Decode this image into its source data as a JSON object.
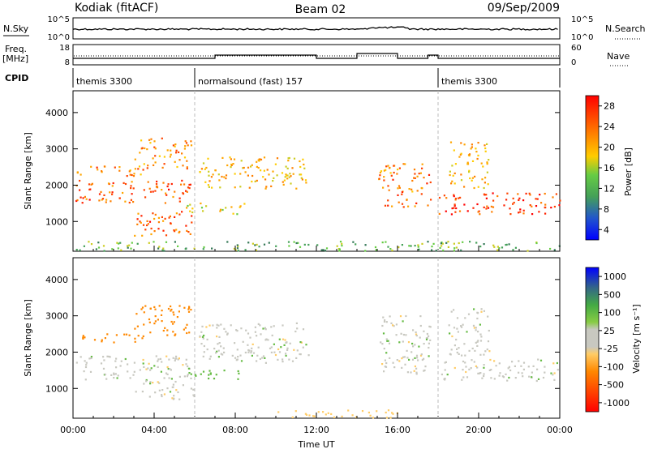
{
  "header": {
    "station": "Kodiak (fitACF)",
    "beam": "Beam 02",
    "date": "09/Sep/2009"
  },
  "strips": {
    "nsky_label": "N.Sky",
    "nsky_ticks": [
      "10^5",
      "10^0"
    ],
    "nsearch_label": "N.Search",
    "nsearch_ticks": [
      "10^5",
      "10^0"
    ],
    "freq_label": "Freq.",
    "freq_unit": "[MHz]",
    "freq_ticks": [
      "18",
      "8"
    ],
    "nave_label": "Nave",
    "nave_ticks": [
      "60",
      "0"
    ],
    "cpid_label": "CPID",
    "cpid_segments": [
      {
        "name": "themis 3300",
        "start_hour": 0,
        "end_hour": 6.0
      },
      {
        "name": "normalsound (fast) 157",
        "start_hour": 6.0,
        "end_hour": 18.0
      },
      {
        "name": "themis 3300",
        "start_hour": 18.0,
        "end_hour": 24
      }
    ]
  },
  "chart_data": [
    {
      "type": "heatmap",
      "title": "",
      "xlabel": "Time UT",
      "ylabel": "Slant Range [km]",
      "xlim": [
        0,
        24
      ],
      "ylim": [
        180,
        4600
      ],
      "x_ticks": [
        "00:00",
        "04:00",
        "08:00",
        "12:00",
        "16:00",
        "20:00",
        "00:00"
      ],
      "y_ticks": [
        1000,
        2000,
        3000,
        4000
      ],
      "colorbar": {
        "label": "Power [dB]",
        "ticks": [
          "28",
          "24",
          "20",
          "16",
          "12",
          "8",
          "4"
        ],
        "range": [
          0,
          30
        ],
        "colors": [
          "#0000ff",
          "#2255cc",
          "#337755",
          "#44a058",
          "#66cc44",
          "#cccc22",
          "#ffcc00",
          "#ffa500",
          "#ff7f00",
          "#ff4400",
          "#ff2200",
          "#ff0000"
        ]
      },
      "features": [
        {
          "t0": 0.1,
          "t1": 5.8,
          "r0": 1500,
          "r1": 2150,
          "level": 24
        },
        {
          "t0": 0.1,
          "t1": 3.5,
          "r0": 2250,
          "r1": 2550,
          "level": 22
        },
        {
          "t0": 3.0,
          "t1": 5.8,
          "r0": 2450,
          "r1": 3300,
          "level": 20
        },
        {
          "t0": 3.0,
          "t1": 6.0,
          "r0": 600,
          "r1": 1300,
          "level": 24
        },
        {
          "t0": 5.5,
          "t1": 8.5,
          "r0": 1200,
          "r1": 1500,
          "level": 16
        },
        {
          "t0": 6.2,
          "t1": 11.6,
          "r0": 1900,
          "r1": 2800,
          "level": 18
        },
        {
          "t0": 15.0,
          "t1": 17.6,
          "r0": 1400,
          "r1": 2600,
          "level": 22
        },
        {
          "t0": 18.0,
          "t1": 24,
          "r0": 1200,
          "r1": 1800,
          "level": 26
        },
        {
          "t0": 18.5,
          "t1": 20.5,
          "r0": 1900,
          "r1": 3200,
          "level": 18
        },
        {
          "t0": 0.1,
          "t1": 24,
          "r0": 190,
          "r1": 450,
          "level": 10
        }
      ]
    },
    {
      "type": "heatmap",
      "title": "",
      "xlabel": "Time UT",
      "ylabel": "Slant Range [km]",
      "xlim": [
        0,
        24
      ],
      "ylim": [
        180,
        4600
      ],
      "x_ticks": [
        "00:00",
        "04:00",
        "08:00",
        "12:00",
        "16:00",
        "20:00",
        "00:00"
      ],
      "y_ticks": [
        1000,
        2000,
        3000,
        4000
      ],
      "colorbar": {
        "label": "Velocity [m s⁻¹]",
        "ticks": [
          "1000",
          "500",
          "100",
          "25",
          "-25",
          "-100",
          "-500",
          "-1000"
        ],
        "colors": [
          "#ff0000",
          "#ff4400",
          "#ff8800",
          "#ffbb00",
          "#ffdd88",
          "#c8c8c0",
          "#c8c8c0",
          "#88cc44",
          "#44aa44",
          "#336688",
          "#2244aa",
          "#0000ff"
        ]
      },
      "features": [
        {
          "t0": 0.1,
          "t1": 5.8,
          "r0": 1200,
          "r1": 1900,
          "velocity": 0
        },
        {
          "t0": 0.1,
          "t1": 3.5,
          "r0": 2250,
          "r1": 2500,
          "velocity": -300
        },
        {
          "t0": 3.0,
          "t1": 5.8,
          "r0": 2450,
          "r1": 3300,
          "velocity": -400
        },
        {
          "t0": 3.0,
          "t1": 6.0,
          "r0": 700,
          "r1": 1200,
          "velocity": 0
        },
        {
          "t0": 5.5,
          "t1": 8.5,
          "r0": 1250,
          "r1": 1500,
          "velocity": 60
        },
        {
          "t0": 6.2,
          "t1": 11.6,
          "r0": 1700,
          "r1": 2800,
          "velocity": 0
        },
        {
          "t0": 15.0,
          "t1": 17.6,
          "r0": 1400,
          "r1": 3000,
          "velocity": 0
        },
        {
          "t0": 18.0,
          "t1": 24,
          "r0": 1200,
          "r1": 1800,
          "velocity": 0
        },
        {
          "t0": 18.5,
          "t1": 20.5,
          "r0": 1900,
          "r1": 3200,
          "velocity": 0
        },
        {
          "t0": 10.0,
          "t1": 16.0,
          "r0": 190,
          "r1": 420,
          "velocity": -60
        }
      ]
    }
  ]
}
